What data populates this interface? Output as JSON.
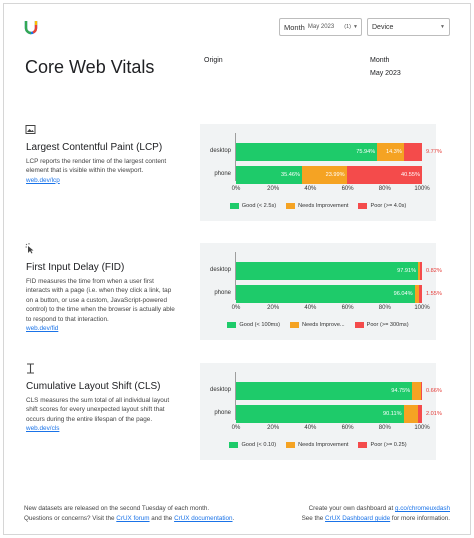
{
  "header": {
    "title": "Core Web Vitals",
    "month_select_label": "Month",
    "month_select_value": "May 2023",
    "month_select_count": "(1)",
    "device_select_value": "Device",
    "origin_label": "Origin",
    "month_label": "Month",
    "month_value": "May 2023"
  },
  "colors": {
    "good": "#1ecb6a",
    "needs_improvement": "#f5a323",
    "poor": "#f44b4b",
    "link": "#1a73e8"
  },
  "metrics": [
    {
      "icon": "lcp-image-icon",
      "title": "Largest Contentful Paint (LCP)",
      "description": "LCP reports the render time of the largest content element that is visible within the viewport.",
      "link": "web.dev/lcp",
      "legend": [
        "Good (< 2.5s)",
        "Needs Improvement",
        "Poor (>= 4.0s)"
      ],
      "rows": [
        {
          "label": "desktop",
          "good": 75.94,
          "good_text": "75.94%",
          "ni": 14.3,
          "ni_text": "14.3%",
          "poor": 9.77,
          "poor_text": "9.77%"
        },
        {
          "label": "phone",
          "good": 35.46,
          "good_text": "35.46%",
          "ni": 23.99,
          "ni_text": "23.99%",
          "poor": 40.55,
          "poor_text": "40.55%"
        }
      ]
    },
    {
      "icon": "fid-click-icon",
      "title": "First Input Delay (FID)",
      "description": "FID measures the time from when a user first interacts with a page (i.e. when they click a link, tap on a button, or use a custom, JavaScript-powered control) to the time when the browser is actually able to respond to that interaction.",
      "link": "web.dev/fid",
      "legend": [
        "Good (< 100ms)",
        "Needs Improve...",
        "Poor (>= 300ms)"
      ],
      "rows": [
        {
          "label": "desktop",
          "good": 97.91,
          "good_text": "97.91%",
          "ni": 1.27,
          "ni_text": "",
          "poor": 0.82,
          "poor_text": "0.82%"
        },
        {
          "label": "phone",
          "good": 96.04,
          "good_text": "96.04%",
          "ni": 2.41,
          "ni_text": "",
          "poor": 1.55,
          "poor_text": "1.55%"
        }
      ]
    },
    {
      "icon": "cls-text-cursor-icon",
      "title": "Cumulative Layout Shift (CLS)",
      "description": "CLS measures the sum total of all individual layout shift scores for every unexpected layout shift that occurs during the entire lifespan of the page.",
      "link": "web.dev/cls",
      "legend": [
        "Good (< 0.10)",
        "Needs Improvement",
        "Poor (>= 0.25)"
      ],
      "rows": [
        {
          "label": "desktop",
          "good": 94.75,
          "good_text": "94.75%",
          "ni": 4.59,
          "ni_text": "",
          "poor": 0.66,
          "poor_text": "0.66%"
        },
        {
          "label": "phone",
          "good": 90.11,
          "good_text": "90.11%",
          "ni": 7.88,
          "ni_text": "",
          "poor": 2.01,
          "poor_text": "2.01%"
        }
      ]
    }
  ],
  "axis_ticks": [
    "0%",
    "20%",
    "40%",
    "60%",
    "80%",
    "100%"
  ],
  "footer": {
    "left_line1": "New datasets are released on the second Tuesday of each month.",
    "left_line2_prefix": "Questions or concerns? Visit the ",
    "left_link1": "CrUX forum",
    "left_line2_mid": " and the ",
    "left_link2": "CrUX documentation",
    "left_line2_suffix": ".",
    "right_line1_prefix": "Create your own dashboard at ",
    "right_link1": "g.co/chromeuxdash",
    "right_line2_prefix": "See the ",
    "right_link2": "CrUX Dashboard guide",
    "right_line2_suffix": " for more information."
  }
}
